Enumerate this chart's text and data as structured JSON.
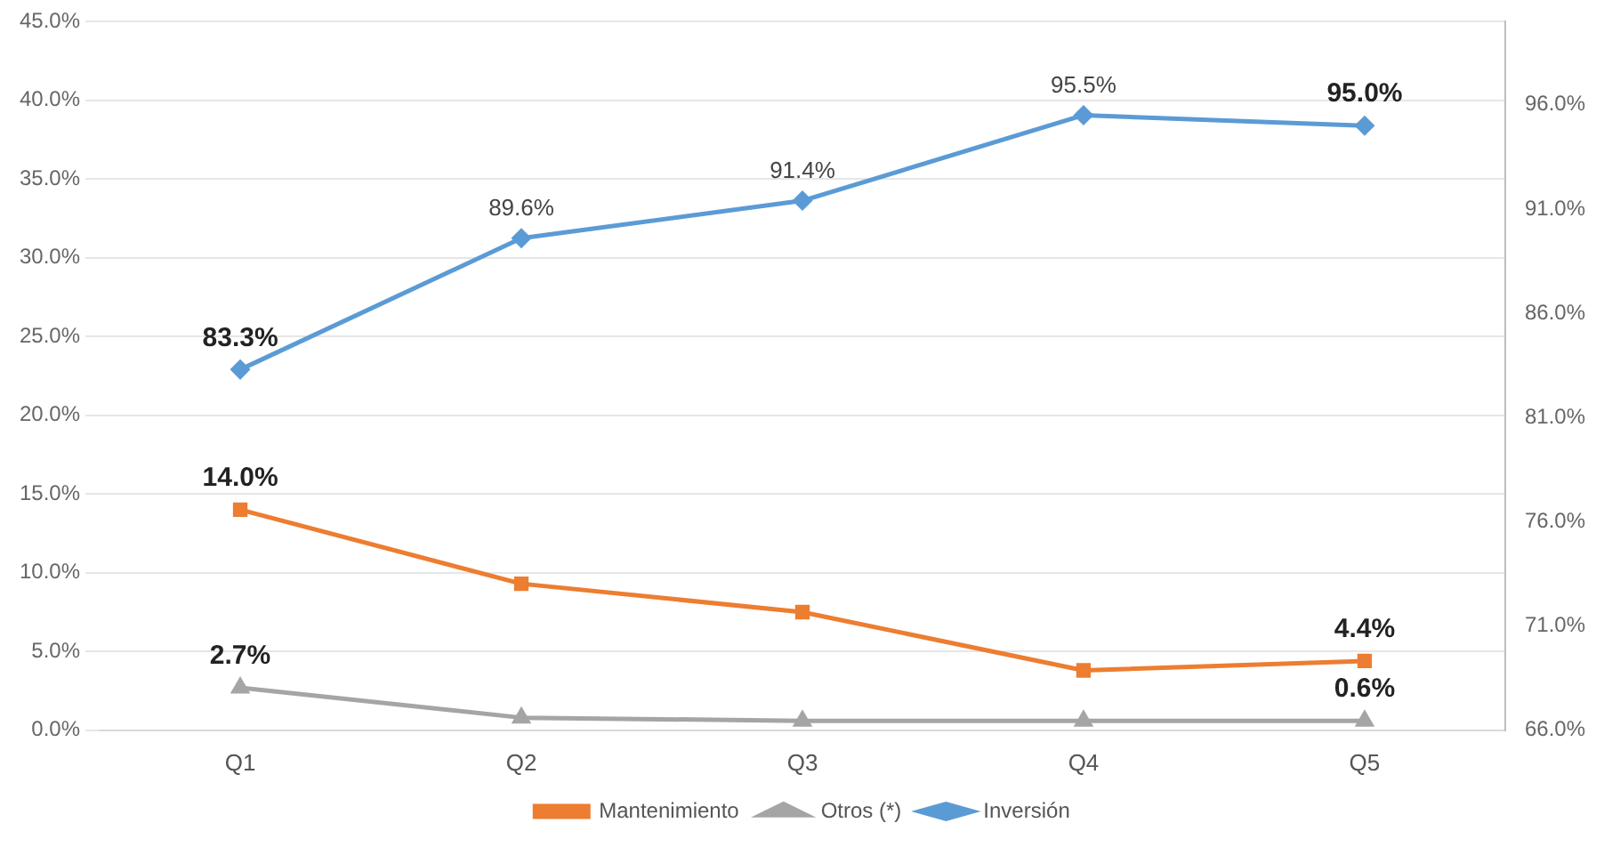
{
  "chart_data": {
    "type": "line",
    "categories": [
      "Q1",
      "Q2",
      "Q3",
      "Q4",
      "Q5"
    ],
    "series": [
      {
        "name": "Mantenimiento",
        "color": "#ed7d31",
        "marker": "square",
        "values": [
          14.0,
          9.3,
          7.5,
          3.8,
          4.4
        ],
        "value_labels": [
          "14.0%",
          null,
          null,
          null,
          "4.4%"
        ]
      },
      {
        "name": "Otros (*)",
        "color": "#a5a5a5",
        "marker": "triangle",
        "values": [
          2.7,
          0.8,
          0.6,
          0.6,
          0.6
        ],
        "value_labels": [
          "2.7%",
          null,
          null,
          null,
          "0.6%"
        ]
      },
      {
        "name": "Inversión",
        "color": "#5b9bd5",
        "axis": "y2",
        "marker": "diamond",
        "values": [
          83.3,
          89.6,
          91.4,
          95.5,
          95.0
        ],
        "value_labels": [
          "83.3%",
          "89.6%",
          "91.4%",
          "95.5%",
          "95.0%"
        ]
      }
    ],
    "ylim": [
      0,
      45
    ],
    "yticks": [
      {
        "value": 0,
        "label": "0.0%"
      },
      {
        "value": 5,
        "label": "5.0%"
      },
      {
        "value": 10,
        "label": "10.0%"
      },
      {
        "value": 15,
        "label": "15.0%"
      },
      {
        "value": 20,
        "label": "20.0%"
      },
      {
        "value": 25,
        "label": "25.0%"
      },
      {
        "value": 30,
        "label": "30.0%"
      },
      {
        "value": 35,
        "label": "35.0%"
      },
      {
        "value": 40,
        "label": "40.0%"
      },
      {
        "value": 45,
        "label": "45.0%"
      }
    ],
    "y2lim": [
      66,
      100
    ],
    "y2ticks": [
      {
        "value": 66,
        "label": "66.0%"
      },
      {
        "value": 71,
        "label": "71.0%"
      },
      {
        "value": 76,
        "label": "76.0%"
      },
      {
        "value": 81,
        "label": "81.0%"
      },
      {
        "value": 86,
        "label": "86.0%"
      },
      {
        "value": 91,
        "label": "91.0%"
      },
      {
        "value": 96,
        "label": "96.0%"
      }
    ],
    "grid": "y",
    "legend": "bottom"
  }
}
